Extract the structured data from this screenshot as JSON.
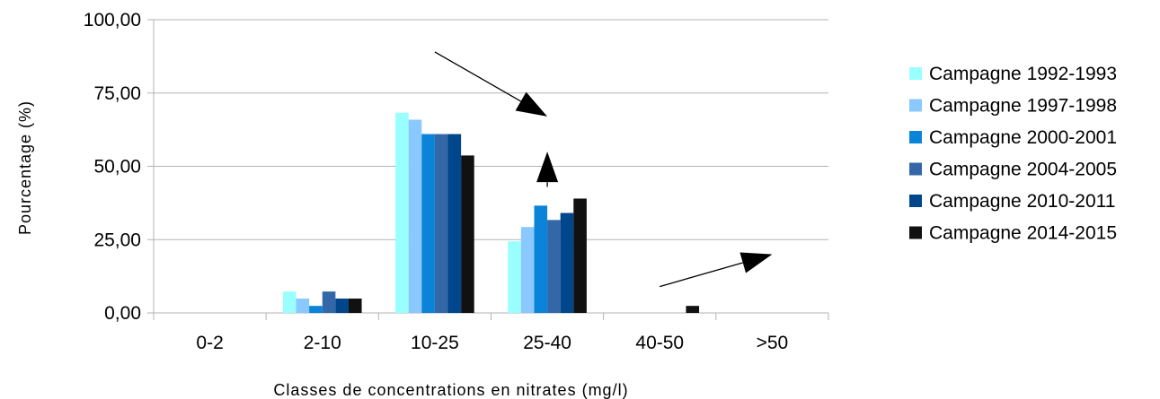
{
  "chart_data": {
    "type": "bar",
    "title": "",
    "xlabel": "Classes de concentrations en nitrates (mg/l)",
    "ylabel": "Pourcentage (%)",
    "ylim": [
      0,
      100
    ],
    "yticks": [
      0,
      25,
      50,
      75,
      100
    ],
    "ytick_labels": [
      "0,00",
      "25,00",
      "50,00",
      "75,00",
      "100,00"
    ],
    "grid": true,
    "legend_position": "right",
    "categories": [
      "0-2",
      "2-10",
      "10-25",
      "25-40",
      "40-50",
      ">50"
    ],
    "series": [
      {
        "name": "Campagne 1992-1993",
        "color": "#99ffff",
        "values": [
          0,
          7.3,
          68.3,
          24.4,
          0,
          0
        ]
      },
      {
        "name": "Campagne 1997-1998",
        "color": "#8ac8ff",
        "values": [
          0,
          4.9,
          65.9,
          29.3,
          0,
          0
        ]
      },
      {
        "name": "Campagne 2000-2001",
        "color": "#0a84d8",
        "values": [
          0,
          2.4,
          61.0,
          36.6,
          0,
          0
        ]
      },
      {
        "name": "Campagne 2004-2005",
        "color": "#3467a8",
        "values": [
          0,
          7.3,
          61.0,
          31.7,
          0,
          0
        ]
      },
      {
        "name": "Campagne 2010-2011",
        "color": "#00468b",
        "values": [
          0,
          4.9,
          61.0,
          34.1,
          0,
          0
        ]
      },
      {
        "name": "Campagne 2014-2015",
        "color": "#111111",
        "values": [
          0,
          4.9,
          53.7,
          39.0,
          2.4,
          0
        ]
      }
    ],
    "annotations": [
      {
        "type": "arrow",
        "direction": "down",
        "from": {
          "x": "10-25",
          "y": 89
        },
        "to": {
          "x": "25-40",
          "y": 67
        }
      },
      {
        "type": "arrow",
        "direction": "up",
        "from": {
          "x": "25-40",
          "y": 43
        },
        "to": {
          "x": "25-40",
          "y": 55
        }
      },
      {
        "type": "arrow",
        "direction": "up",
        "from": {
          "x": "40-50",
          "y": 9
        },
        "to": {
          "x": ">50",
          "y": 20
        }
      }
    ]
  }
}
